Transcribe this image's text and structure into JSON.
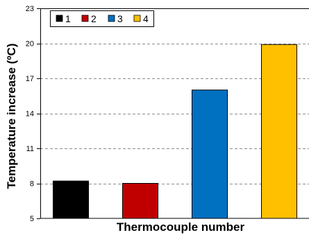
{
  "chart_data": {
    "type": "bar",
    "categories": [
      "1",
      "2",
      "3",
      "4"
    ],
    "values": [
      8.2,
      8.0,
      16.0,
      19.9
    ],
    "colors": [
      "#000000",
      "#c00000",
      "#0070c0",
      "#ffc000"
    ],
    "xlabel": "Thermocouple number",
    "ylabel": "Temperature increase (ºC)",
    "ylim": [
      5,
      23
    ],
    "yticks": [
      "5",
      "8",
      "11",
      "14",
      "17",
      "20",
      "23"
    ],
    "grid": "horizontal dashed",
    "legend": {
      "placement": "top-left",
      "entries": [
        "1",
        "2",
        "3",
        "4"
      ]
    }
  }
}
